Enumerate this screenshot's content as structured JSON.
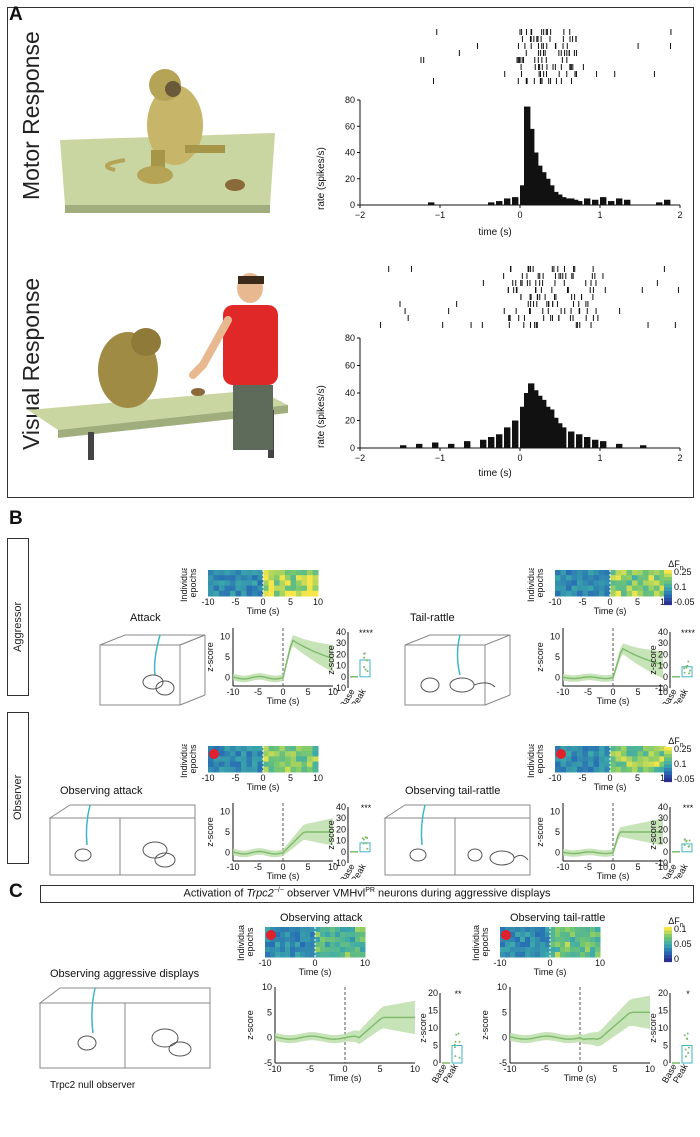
{
  "panel_a": {
    "letter": "A",
    "motor_label": "Motor Response",
    "visual_label": "Visual Response",
    "motor_hist": {
      "ylabel": "rate (spikes/s)",
      "xlabel": "time (s)",
      "yticks": [
        "80",
        "60",
        "40",
        "20",
        "0"
      ],
      "xticks": [
        "−2",
        "−1",
        "0",
        "1",
        "2"
      ]
    },
    "visual_hist": {
      "ylabel": "rate (spikes/s)",
      "xlabel": "time (s)",
      "yticks": [
        "80",
        "60",
        "40",
        "20",
        "0"
      ],
      "xticks": [
        "−2",
        "−1",
        "0",
        "1",
        "2"
      ]
    }
  },
  "panel_b": {
    "letter": "B",
    "row1_label": "Aggressor",
    "row2_label": "Observer",
    "attack_title": "Attack",
    "tailrattle_title": "Tail-rattle",
    "obs_attack_title": "Observing attack",
    "obs_tailrattle_title": "Observing tail-rattle",
    "heat_ylabel_1": "Individual",
    "heat_ylabel_2": "epochs",
    "heat_xticks": [
      "-10",
      "-5",
      "0",
      "5",
      "10"
    ],
    "time_label": "Time (s)",
    "zscore_label": "z-score",
    "trace_yticks": [
      "10",
      "5",
      "0"
    ],
    "trace_xticks": [
      "-10",
      "-5",
      "0",
      "5",
      "10"
    ],
    "bar_yticks_attack": [
      "40",
      "30",
      "20",
      "10",
      "0",
      "-10"
    ],
    "bar_yticks_tr": [
      "40",
      "30",
      "20",
      "10",
      "0",
      "-10"
    ],
    "base_label": "Base",
    "peak_label": "Peak",
    "sig_attack": "****",
    "sig_tr": "****",
    "sig_obs_attack": "***",
    "sig_obs_tr": "***",
    "cbar_title": "ΔF",
    "cbar_sub": "n",
    "cbar_ticks": [
      "0.25",
      "0.1",
      "-0.05"
    ]
  },
  "panel_c": {
    "letter": "C",
    "banner_pre": "Activation of ",
    "banner_gene": "Trpc2",
    "banner_sup": "−/−",
    "banner_mid": " observer VMHvl",
    "banner_sup2": "PR",
    "banner_post": " neurons during aggressive displays",
    "left_title": "Observing aggressive displays",
    "left_caption": "Trpc2 null observer",
    "obs_attack_title": "Observing attack",
    "obs_tr_title": "Observing tail-rattle",
    "heat_ylabel_1": "Individual",
    "heat_ylabel_2": "epochs",
    "heat_xticks": [
      "-10",
      "0",
      "10"
    ],
    "trace_yticks": [
      "10",
      "5",
      "0",
      "-5"
    ],
    "trace_xticks": [
      "-10",
      "-5",
      "0",
      "5",
      "10"
    ],
    "bar_yticks": [
      "20",
      "15",
      "10",
      "5",
      "0"
    ],
    "time_label": "Time (s)",
    "zscore_label": "z-score",
    "base_label": "Base",
    "peak_label": "Peak",
    "sig_attack": "**",
    "sig_tr": "*",
    "cbar_title": "ΔF",
    "cbar_sub": "n",
    "cbar_ticks": [
      "0.1",
      "0.05",
      "0"
    ]
  },
  "colors": {
    "green": "#7dbb6a",
    "green_fill": "#b9dca6",
    "cyan": "#3fb6c6",
    "heat_low": "#2b2f8f",
    "heat_high": "#f6e64a",
    "dot": "#e0202a"
  },
  "chart_data": [
    {
      "type": "bar",
      "title": "",
      "xlabel": "time (s)",
      "ylabel": "rate (spikes/s)",
      "xlim": [
        -2,
        2
      ],
      "ylim": [
        0,
        80
      ],
      "x": [
        -1.15,
        -0.4,
        -0.3,
        -0.2,
        -0.1,
        0.0,
        0.05,
        0.1,
        0.15,
        0.2,
        0.25,
        0.3,
        0.35,
        0.4,
        0.45,
        0.5,
        0.55,
        0.6,
        0.65,
        0.7,
        0.8,
        0.9,
        1.0,
        1.1,
        1.2,
        1.3,
        1.7,
        1.8
      ],
      "values": [
        2,
        2,
        3,
        5,
        6,
        15,
        75,
        58,
        40,
        30,
        25,
        20,
        15,
        10,
        8,
        6,
        5,
        5,
        4,
        3,
        5,
        4,
        6,
        3,
        5,
        4,
        2,
        4
      ]
    },
    {
      "type": "bar",
      "title": "",
      "xlabel": "time (s)",
      "ylabel": "rate (spikes/s)",
      "xlim": [
        -2,
        2
      ],
      "ylim": [
        0,
        80
      ],
      "x": [
        -1.5,
        -1.3,
        -1.1,
        -0.9,
        -0.7,
        -0.5,
        -0.4,
        -0.3,
        -0.2,
        -0.1,
        0.0,
        0.05,
        0.1,
        0.15,
        0.2,
        0.25,
        0.3,
        0.35,
        0.4,
        0.45,
        0.5,
        0.6,
        0.7,
        0.8,
        0.9,
        1.0,
        1.2,
        1.5
      ],
      "values": [
        2,
        3,
        4,
        3,
        5,
        6,
        8,
        10,
        15,
        20,
        30,
        40,
        47,
        42,
        38,
        35,
        30,
        28,
        22,
        18,
        15,
        12,
        10,
        8,
        6,
        5,
        3,
        2
      ]
    }
  ]
}
